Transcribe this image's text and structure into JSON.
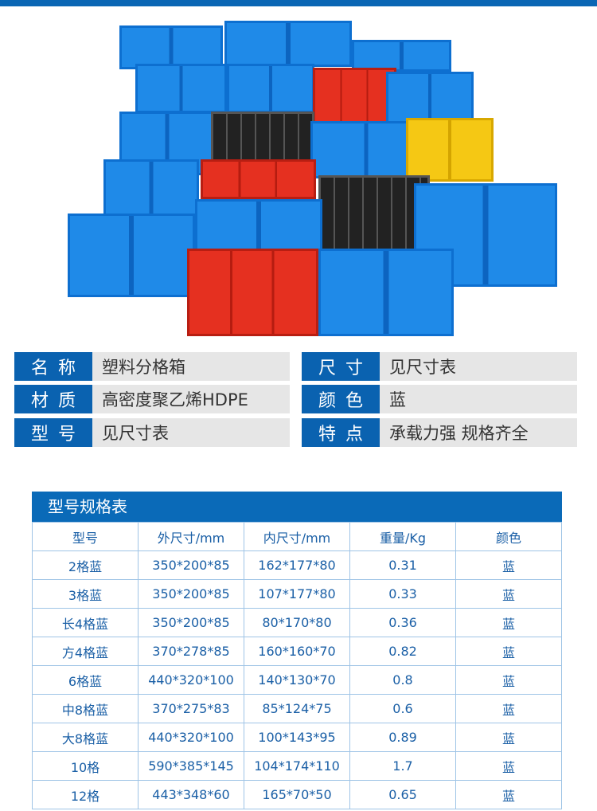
{
  "info": [
    {
      "k": "名称",
      "v": "塑料分格箱"
    },
    {
      "k": "尺寸",
      "v": "见尺寸表"
    },
    {
      "k": "材质",
      "v": "高密度聚乙烯HDPE"
    },
    {
      "k": "颜色",
      "v": "蓝"
    },
    {
      "k": "型号",
      "v": "见尺寸表"
    },
    {
      "k": "特点",
      "v": "承载力强 规格齐全"
    }
  ],
  "spec": {
    "title": "型号规格表",
    "headers": [
      "型号",
      "外尺寸/mm",
      "内尺寸/mm",
      "重量/Kg",
      "颜色"
    ],
    "rows": [
      [
        "2格蓝",
        "350*200*85",
        "162*177*80",
        "0.31",
        "蓝"
      ],
      [
        "3格蓝",
        "350*200*85",
        "107*177*80",
        "0.33",
        "蓝"
      ],
      [
        "长4格蓝",
        "350*200*85",
        "80*170*80",
        "0.36",
        "蓝"
      ],
      [
        "方4格蓝",
        "370*278*85",
        "160*160*70",
        "0.82",
        "蓝"
      ],
      [
        "6格蓝",
        "440*320*100",
        "140*130*70",
        "0.8",
        "蓝"
      ],
      [
        "中8格蓝",
        "370*275*83",
        "85*124*75",
        "0.6",
        "蓝"
      ],
      [
        "大8格蓝",
        "440*320*100",
        "100*143*95",
        "0.89",
        "蓝"
      ],
      [
        "10格",
        "590*385*145",
        "104*174*110",
        "1.7",
        "蓝"
      ],
      [
        "12格",
        "443*348*60",
        "165*70*50",
        "0.65",
        "蓝"
      ]
    ]
  },
  "colors": {
    "brand": "#0a66b4",
    "text": "#1a5fa6"
  }
}
